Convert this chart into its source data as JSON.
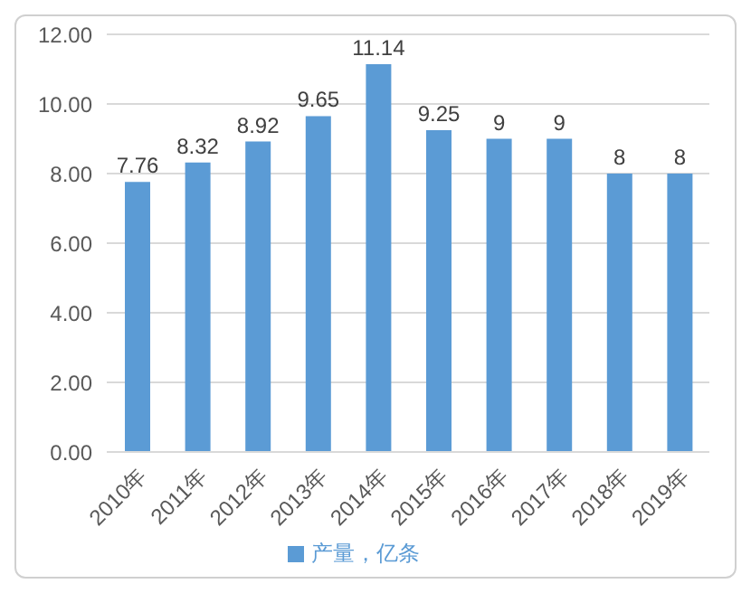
{
  "chart_data": {
    "type": "bar",
    "categories": [
      "2010年",
      "2011年",
      "2012年",
      "2013年",
      "2014年",
      "2015年",
      "2016年",
      "2017年",
      "2018年",
      "2019年"
    ],
    "series": [
      {
        "name": "产量，亿条",
        "color": "#5b9bd5",
        "values": [
          7.76,
          8.32,
          8.92,
          9.65,
          11.14,
          9.25,
          9,
          9,
          8,
          8
        ]
      }
    ],
    "ylim": [
      0,
      12
    ],
    "yticks": [
      {
        "value": 0,
        "label": "0.00"
      },
      {
        "value": 2,
        "label": "2.00"
      },
      {
        "value": 4,
        "label": "4.00"
      },
      {
        "value": 6,
        "label": "6.00"
      },
      {
        "value": 8,
        "label": "8.00"
      },
      {
        "value": 10,
        "label": "10.00"
      },
      {
        "value": 12,
        "label": "12.00"
      }
    ],
    "grid": "y",
    "legend": "bottom",
    "data_labels": true
  }
}
